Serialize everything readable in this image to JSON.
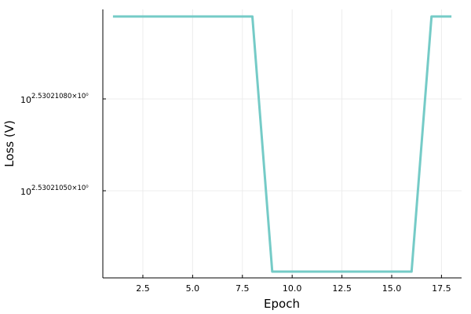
{
  "chart_data": {
    "type": "line",
    "title": "",
    "xlabel": "Epoch",
    "ylabel": "Loss (V)",
    "x": [
      1,
      2,
      3,
      4,
      5,
      6,
      7,
      8,
      9,
      10,
      11,
      12,
      13,
      14,
      15,
      16,
      17,
      18
    ],
    "series": [
      {
        "color": "#75CBC7",
        "values": [
          3.3926,
          3.3926,
          3.3926,
          3.3926,
          3.3926,
          3.3926,
          3.3926,
          3.3926,
          3.3925,
          3.3925,
          3.3925,
          3.3925,
          3.3925,
          3.3925,
          3.3925,
          3.3925,
          3.3926,
          3.3926
        ]
      }
    ],
    "xticks": [
      2.5,
      5.0,
      7.5,
      10.0,
      12.5,
      15.0,
      17.5
    ],
    "xtick_labels": [
      "2.5",
      "5.0",
      "7.5",
      "10.0",
      "12.5",
      "15.0",
      "17.5"
    ],
    "xlim": [
      0.49,
      18.51
    ],
    "ytick_labels": [
      {
        "base": "10",
        "exponent": "2.53021080×10⁰"
      },
      {
        "base": "10",
        "exponent": "2.53021050×10⁰"
      }
    ],
    "grid": true,
    "legend": "none"
  }
}
